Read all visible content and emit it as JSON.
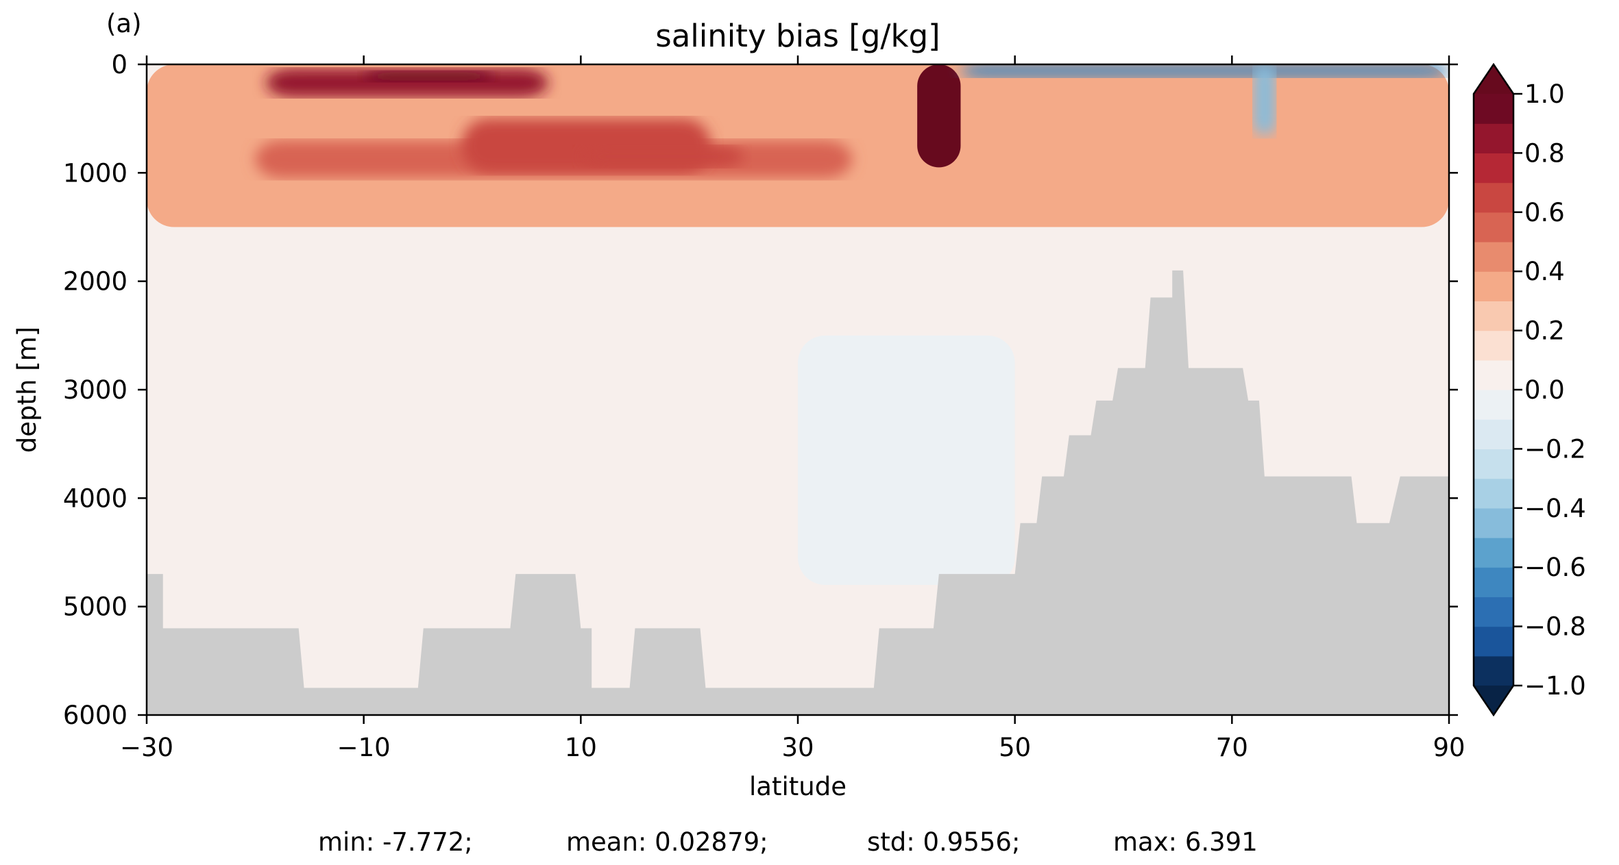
{
  "chart_data": {
    "type": "heatmap",
    "panel_label": "(a)",
    "title": "salinity bias [g/kg]",
    "xlabel": "latitude",
    "ylabel": "depth [m]",
    "xlim": [
      -30,
      90
    ],
    "ylim": [
      6000,
      0
    ],
    "x_ticks": [
      -30,
      -10,
      10,
      30,
      50,
      70,
      90
    ],
    "x_tick_labels": [
      "−30",
      "−10",
      "10",
      "30",
      "50",
      "70",
      "90"
    ],
    "y_ticks": [
      0,
      1000,
      2000,
      3000,
      4000,
      5000,
      6000
    ],
    "y_tick_labels": [
      "0",
      "1000",
      "2000",
      "3000",
      "4000",
      "5000",
      "6000"
    ],
    "colorbar": {
      "min": -1.0,
      "max": 1.0,
      "extend": "both",
      "levels": [
        -1.0,
        -0.9,
        -0.8,
        -0.7,
        -0.6,
        -0.5,
        -0.4,
        -0.3,
        -0.2,
        -0.1,
        0.0,
        0.1,
        0.2,
        0.3,
        0.4,
        0.5,
        0.6,
        0.7,
        0.8,
        0.9,
        1.0
      ],
      "tick_values": [
        -1.0,
        -0.8,
        -0.6,
        -0.4,
        -0.2,
        0.0,
        0.2,
        0.4,
        0.6,
        0.8,
        1.0
      ],
      "tick_labels": [
        "−1.0",
        "−0.8",
        "−0.6",
        "−0.4",
        "−0.2",
        "0.0",
        "0.2",
        "0.4",
        "0.6",
        "0.8",
        "1.0"
      ],
      "colors": [
        "#0c305f",
        "#1a559b",
        "#2c6fb3",
        "#3e87c0",
        "#5ca2cd",
        "#87bcdb",
        "#a8d0e5",
        "#c6e0ed",
        "#dbe9f2",
        "#ecf1f4",
        "#f8f0ed",
        "#fbe0d2",
        "#f9c9b0",
        "#f4aa88",
        "#e88b6e",
        "#d86453",
        "#c94741",
        "#b52835",
        "#94162d",
        "#6e0a23"
      ],
      "under_color": "#082346",
      "over_color": "#670a1e",
      "colormap": "RdBu_r"
    },
    "land_color": "#cccccc",
    "bathymetry_depth": [
      [
        -30,
        4700
      ],
      [
        -28.5,
        4700
      ],
      [
        -28.5,
        5200
      ],
      [
        -16,
        5200
      ],
      [
        -15.5,
        5750
      ],
      [
        -5,
        5750
      ],
      [
        -4.5,
        5200
      ],
      [
        3.5,
        5200
      ],
      [
        4,
        4700
      ],
      [
        9.5,
        4700
      ],
      [
        10,
        5200
      ],
      [
        11,
        5200
      ],
      [
        11,
        5750
      ],
      [
        14.5,
        5750
      ],
      [
        15,
        5200
      ],
      [
        21,
        5200
      ],
      [
        21.5,
        5750
      ],
      [
        37,
        5750
      ],
      [
        37.5,
        5200
      ],
      [
        42.5,
        5200
      ],
      [
        43,
        4700
      ],
      [
        50,
        4700
      ],
      [
        50.5,
        4230
      ],
      [
        52,
        4230
      ],
      [
        52.5,
        3800
      ],
      [
        54.5,
        3800
      ],
      [
        55,
        3420
      ],
      [
        57,
        3420
      ],
      [
        57.5,
        3100
      ],
      [
        59,
        3100
      ],
      [
        59.5,
        2800
      ],
      [
        62,
        2800
      ],
      [
        62.5,
        2150
      ],
      [
        64.5,
        2150
      ],
      [
        64.5,
        1900
      ],
      [
        65.5,
        1900
      ],
      [
        66,
        2800
      ],
      [
        71,
        2800
      ],
      [
        71.5,
        3100
      ],
      [
        72.5,
        3100
      ],
      [
        73,
        3800
      ],
      [
        81,
        3800
      ],
      [
        81.5,
        4230
      ],
      [
        84.5,
        4230
      ],
      [
        85.5,
        3800
      ],
      [
        90,
        3800
      ]
    ],
    "bias_features": [
      {
        "lat": [
          -30,
          90
        ],
        "depth": [
          0,
          1500
        ],
        "value": 0.3
      },
      {
        "lat": [
          -19,
          7
        ],
        "depth": [
          40,
          300
        ],
        "value": 0.85
      },
      {
        "lat": [
          -10,
          2
        ],
        "depth": [
          60,
          160
        ],
        "value": 0.95
      },
      {
        "lat": [
          -20,
          35
        ],
        "depth": [
          700,
          1050
        ],
        "value": 0.5
      },
      {
        "lat": [
          -1,
          22
        ],
        "depth": [
          500,
          1000
        ],
        "value": 0.6
      },
      {
        "lat": [
          10,
          25
        ],
        "depth": [
          750,
          950
        ],
        "value": 0.65
      },
      {
        "lat": [
          41,
          45
        ],
        "depth": [
          0,
          950
        ],
        "value": 1.2
      },
      {
        "lat": [
          45,
          90
        ],
        "depth": [
          0,
          120
        ],
        "value": -0.7
      },
      {
        "lat": [
          72,
          74
        ],
        "depth": [
          0,
          650
        ],
        "value": -0.5
      },
      {
        "lat": [
          30,
          50
        ],
        "depth": [
          2500,
          4800
        ],
        "value": -0.05
      }
    ],
    "stats": {
      "min": "-7.772",
      "mean": "0.02879",
      "std": "0.9556",
      "max": "6.391"
    }
  },
  "stats_text": {
    "min": "min: -7.772;",
    "mean": "mean: 0.02879;",
    "std": "std: 0.9556;",
    "max": "max: 6.391"
  }
}
